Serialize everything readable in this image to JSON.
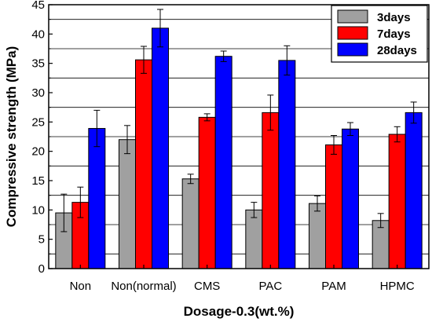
{
  "chart_data": {
    "type": "bar",
    "xlabel": "Dosage-0.3(wt.%)",
    "ylabel": "Compressive strength (MPa)",
    "ylim": [
      0,
      45
    ],
    "yticks": [
      0,
      5,
      10,
      15,
      20,
      25,
      30,
      35,
      40,
      45
    ],
    "grid": "horizontal lines at 2.5 MPa offsets",
    "legend_position": "top-right",
    "categories": [
      "Non",
      "Non(normal)",
      "CMS",
      "PAC",
      "PAM",
      "HPMC"
    ],
    "series": [
      {
        "name": "3days",
        "color": "#a0a0a0",
        "values": [
          9.5,
          22.0,
          15.3,
          10.0,
          11.1,
          8.2
        ],
        "errors": [
          3.2,
          2.4,
          0.8,
          1.3,
          1.3,
          1.2
        ]
      },
      {
        "name": "7days",
        "color": "#ff0000",
        "values": [
          11.3,
          35.6,
          25.8,
          26.6,
          21.1,
          22.9
        ],
        "errors": [
          2.6,
          2.3,
          0.6,
          3.0,
          1.6,
          1.3
        ]
      },
      {
        "name": "28days",
        "color": "#0000ff",
        "values": [
          23.9,
          41.0,
          36.2,
          35.5,
          23.8,
          26.6
        ],
        "errors": [
          3.1,
          3.2,
          0.9,
          2.5,
          1.1,
          1.8
        ]
      }
    ]
  }
}
